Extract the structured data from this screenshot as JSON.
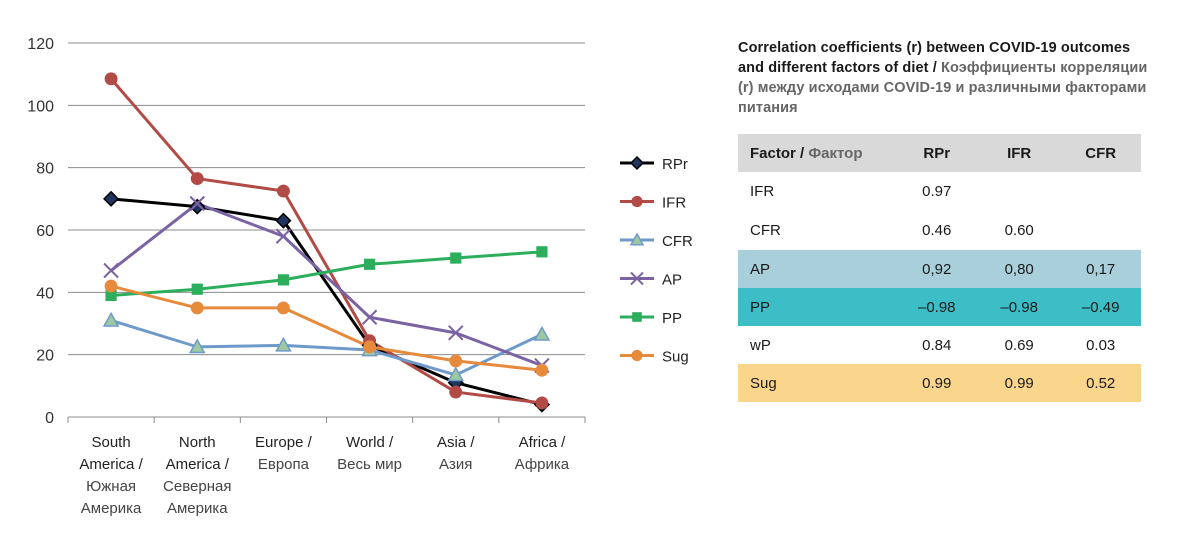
{
  "chart_data": {
    "type": "line",
    "categories": [
      [
        "South",
        "America /",
        "Южная",
        "Америка"
      ],
      [
        "North",
        "America /",
        "Северная",
        "Америка"
      ],
      [
        "Europe /",
        "Европа"
      ],
      [
        "World /",
        "Весь мир"
      ],
      [
        "Asia /",
        "Азия"
      ],
      [
        "Africa /",
        "Африка"
      ]
    ],
    "ylim": [
      0,
      120
    ],
    "yticks": [
      0,
      20,
      40,
      60,
      80,
      100,
      120
    ],
    "grid": true,
    "legend_position": "right",
    "series": [
      {
        "name": "RPr",
        "color": "#000000",
        "marker": "diamond",
        "values": [
          70,
          67.5,
          63,
          23,
          11,
          4
        ]
      },
      {
        "name": "IFR",
        "color": "#b24a45",
        "marker": "circle",
        "values": [
          108.5,
          76.5,
          72.5,
          24.5,
          8,
          4.5
        ]
      },
      {
        "name": "CFR",
        "color": "#6e9ac9",
        "marker": "triangle",
        "values": [
          31,
          22.5,
          23,
          21.5,
          13.5,
          26.5
        ]
      },
      {
        "name": "AP",
        "color": "#7b62a3",
        "marker": "x",
        "values": [
          47,
          68.5,
          58,
          32,
          27,
          16.5
        ]
      },
      {
        "name": "PP",
        "color": "#2dae5c",
        "marker": "square",
        "values": [
          39,
          41,
          44,
          49,
          51,
          53
        ]
      },
      {
        "name": "Sug",
        "color": "#e68a3c",
        "marker": "circle",
        "values": [
          42,
          35,
          35,
          22.5,
          18,
          15
        ]
      }
    ]
  },
  "table": {
    "title_en": "Correlation coefficients (r) between COVID-19 outcomes and different factors of diet /",
    "title_ru": "Коэффициенты корреляции (r) между исходами COVID-19 и различными факторами питания",
    "header": {
      "factor_en": "Factor /",
      "factor_ru": "Фактор",
      "rpr": "RPr",
      "ifr": "IFR",
      "cfr": "CFR"
    },
    "rows": [
      {
        "factor": "IFR",
        "rpr": "0.97",
        "ifr": "",
        "cfr": ""
      },
      {
        "factor": "CFR",
        "rpr": "0.46",
        "ifr": "0.60",
        "cfr": ""
      },
      {
        "factor": "AP",
        "rpr": "0,92",
        "ifr": "0,80",
        "cfr": "0,17"
      },
      {
        "factor": "PP",
        "rpr": "–0.98",
        "ifr": "–0.98",
        "cfr": "–0.49"
      },
      {
        "factor": "wP",
        "rpr": "0.84",
        "ifr": "0.69",
        "cfr": "0.03"
      },
      {
        "factor": "Sug",
        "rpr": "0.99",
        "ifr": "0.99",
        "cfr": "0.52"
      }
    ],
    "row_colors": {
      "AP": "#a9cfdb",
      "PP": "#3dbdc6",
      "Sug": "#fad58c",
      "header": "#d9d9d9"
    }
  }
}
